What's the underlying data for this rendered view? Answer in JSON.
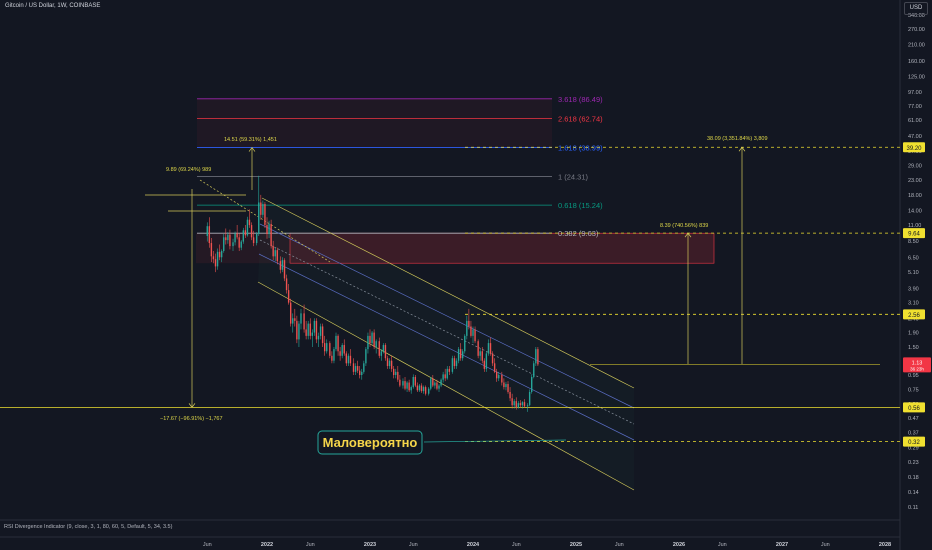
{
  "header": {
    "title": "Gitcoin / US Dollar, 1W, COINBASE",
    "currency": "USD"
  },
  "indicator": "RSI Divergence Indicator (9, close, 3, 1, 80, 60, 5, Default, 5, 34, 3.5)",
  "annotation": {
    "text": "Маловероятно"
  },
  "colors": {
    "bg": "#131722",
    "candle_up": "#26a69a",
    "candle_down": "#ef5350",
    "channel": "#d4c95a",
    "dashed_level": "#f0e030",
    "label_red": "#f23645"
  },
  "chart_data": {
    "type": "candlestick",
    "yscale": "log",
    "y_ticks": [
      340.0,
      270.0,
      210.0,
      160.0,
      125.0,
      97.0,
      77.0,
      61.0,
      47.0,
      37.0,
      29.0,
      23.0,
      18.0,
      14.0,
      11.0,
      8.5,
      6.5,
      5.1,
      3.9,
      3.1,
      2.4,
      1.9,
      1.5,
      1.2,
      0.95,
      0.75,
      0.59,
      0.47,
      0.37,
      0.29,
      0.23,
      0.18,
      0.14,
      0.11
    ],
    "x_ticks": [
      "Jun",
      "2022",
      "Jun",
      "2023",
      "Jun",
      "2024",
      "Jun",
      "2025",
      "Jun",
      "2026",
      "Jun",
      "2027",
      "Jun",
      "2028"
    ],
    "price_labels": [
      {
        "text": "39.20",
        "value": 39.2
      },
      {
        "text": "9.64",
        "value": 9.64
      },
      {
        "text": "2.56",
        "value": 2.56
      },
      {
        "text": "1.13",
        "value": 1.13
      },
      {
        "text": "0.56",
        "value": 0.56
      },
      {
        "text": "0.32",
        "value": 0.32
      }
    ],
    "current_price": {
      "text": "1.13",
      "sub": "36 23h"
    },
    "fib_levels": [
      {
        "label": "3.618 (86.49)",
        "value": 86.49,
        "color": "#9c27b0"
      },
      {
        "label": "2.618 (62.74)",
        "value": 62.74,
        "color": "#f23645"
      },
      {
        "label": "1.618 (38.99)",
        "value": 38.99,
        "color": "#2962ff"
      },
      {
        "label": "1 (24.31)",
        "value": 24.31,
        "color": "#787b86"
      },
      {
        "label": "0.618 (15.24)",
        "value": 15.24,
        "color": "#089981"
      },
      {
        "label": "0.382 (9.63)",
        "value": 9.63,
        "color": "#b2b5be"
      }
    ],
    "measure_labels": [
      {
        "text": "14.51 (59.31%) 1,451"
      },
      {
        "text": "9.89 (69.24%) 989"
      },
      {
        "text": "38.09 (3,351.84%) 3,809"
      },
      {
        "text": "8.39 (740.56%) 839"
      },
      {
        "text": "−17.67 (−96.91%) −1,767"
      }
    ],
    "candles": [
      [
        2021.42,
        9.2,
        11.5,
        8.4,
        10.8
      ],
      [
        2021.44,
        10.8,
        12.5,
        7.6,
        8.2
      ],
      [
        2021.46,
        8.2,
        8.9,
        6.0,
        6.6
      ],
      [
        2021.48,
        6.6,
        7.2,
        5.9,
        6.3
      ],
      [
        2021.5,
        6.3,
        6.9,
        5.1,
        5.6
      ],
      [
        2021.52,
        5.6,
        7.5,
        5.3,
        7.1
      ],
      [
        2021.54,
        7.1,
        8.0,
        6.2,
        6.5
      ],
      [
        2021.56,
        6.5,
        7.4,
        6.0,
        7.2
      ],
      [
        2021.58,
        7.2,
        9.5,
        7.0,
        9.0
      ],
      [
        2021.6,
        9.0,
        10.4,
        8.0,
        8.6
      ],
      [
        2021.62,
        8.6,
        9.8,
        8.1,
        9.4
      ],
      [
        2021.64,
        9.4,
        10.2,
        7.4,
        7.8
      ],
      [
        2021.67,
        7.8,
        8.8,
        7.2,
        8.3
      ],
      [
        2021.69,
        8.3,
        9.9,
        7.9,
        9.6
      ],
      [
        2021.71,
        9.6,
        11.0,
        8.7,
        9.0
      ],
      [
        2021.73,
        9.0,
        9.6,
        7.2,
        7.6
      ],
      [
        2021.75,
        7.6,
        8.6,
        7.3,
        8.4
      ],
      [
        2021.77,
        8.4,
        10.5,
        8.1,
        10.1
      ],
      [
        2021.79,
        10.1,
        11.0,
        8.9,
        9.3
      ],
      [
        2021.81,
        9.3,
        12.6,
        9.1,
        12.0
      ],
      [
        2021.83,
        12.0,
        14.2,
        10.5,
        11.0
      ],
      [
        2021.85,
        11.0,
        11.5,
        8.6,
        9.0
      ],
      [
        2021.87,
        9.0,
        10.0,
        7.8,
        8.2
      ],
      [
        2021.9,
        8.2,
        9.8,
        7.9,
        9.5
      ],
      [
        2021.92,
        9.5,
        24.6,
        9.2,
        15.9
      ],
      [
        2021.94,
        15.9,
        18.0,
        12.0,
        13.0
      ],
      [
        2021.96,
        13.0,
        16.4,
        12.4,
        15.5
      ],
      [
        2021.98,
        15.5,
        16.0,
        10.5,
        11.0
      ],
      [
        2022.0,
        11.0,
        12.5,
        8.8,
        9.5
      ],
      [
        2022.02,
        9.5,
        11.8,
        8.9,
        11.2
      ],
      [
        2022.04,
        11.2,
        12.0,
        7.5,
        7.8
      ],
      [
        2022.06,
        7.8,
        8.5,
        6.2,
        6.6
      ],
      [
        2022.08,
        6.6,
        7.6,
        6.1,
        7.3
      ],
      [
        2022.1,
        7.3,
        7.6,
        5.8,
        6.1
      ],
      [
        2022.13,
        6.1,
        6.6,
        5.0,
        5.3
      ],
      [
        2022.15,
        5.3,
        6.5,
        5.1,
        6.2
      ],
      [
        2022.17,
        6.2,
        6.4,
        4.4,
        4.6
      ],
      [
        2022.19,
        4.6,
        4.9,
        3.6,
        3.8
      ],
      [
        2022.21,
        3.8,
        4.2,
        3.0,
        3.1
      ],
      [
        2022.23,
        3.1,
        3.3,
        2.1,
        2.2
      ],
      [
        2022.25,
        2.2,
        2.6,
        1.9,
        2.4
      ],
      [
        2022.27,
        2.4,
        2.8,
        2.1,
        2.3
      ],
      [
        2022.29,
        2.3,
        2.5,
        1.6,
        1.7
      ],
      [
        2022.31,
        1.7,
        2.3,
        1.5,
        2.2
      ],
      [
        2022.33,
        2.2,
        2.8,
        2.0,
        2.6
      ],
      [
        2022.36,
        2.6,
        3.0,
        1.9,
        2.0
      ],
      [
        2022.38,
        2.0,
        2.3,
        1.7,
        1.8
      ],
      [
        2022.4,
        1.8,
        2.3,
        1.7,
        2.2
      ],
      [
        2022.42,
        2.2,
        2.4,
        1.7,
        1.8
      ],
      [
        2022.44,
        1.8,
        2.0,
        1.5,
        1.9
      ],
      [
        2022.46,
        1.9,
        2.4,
        1.8,
        2.3
      ],
      [
        2022.48,
        2.3,
        2.4,
        1.6,
        1.7
      ],
      [
        2022.5,
        1.7,
        1.9,
        1.5,
        1.8
      ],
      [
        2022.52,
        1.8,
        2.2,
        1.7,
        2.1
      ],
      [
        2022.54,
        2.1,
        2.2,
        1.5,
        1.6
      ],
      [
        2022.56,
        1.6,
        1.8,
        1.3,
        1.4
      ],
      [
        2022.58,
        1.4,
        1.7,
        1.35,
        1.6
      ],
      [
        2022.61,
        1.6,
        1.65,
        1.25,
        1.3
      ],
      [
        2022.63,
        1.3,
        1.4,
        1.15,
        1.2
      ],
      [
        2022.65,
        1.2,
        1.5,
        1.15,
        1.45
      ],
      [
        2022.67,
        1.45,
        1.9,
        1.4,
        1.8
      ],
      [
        2022.69,
        1.8,
        1.85,
        1.3,
        1.4
      ],
      [
        2022.71,
        1.4,
        1.5,
        1.2,
        1.3
      ],
      [
        2022.73,
        1.3,
        1.6,
        1.25,
        1.55
      ],
      [
        2022.75,
        1.55,
        1.7,
        1.3,
        1.35
      ],
      [
        2022.77,
        1.35,
        1.4,
        1.1,
        1.15
      ],
      [
        2022.79,
        1.15,
        1.35,
        1.1,
        1.3
      ],
      [
        2022.81,
        1.3,
        1.45,
        1.1,
        1.15
      ],
      [
        2022.84,
        1.15,
        1.25,
        0.95,
        1.0
      ],
      [
        2022.86,
        1.0,
        1.15,
        0.95,
        1.1
      ],
      [
        2022.88,
        1.1,
        1.2,
        0.98,
        1.02
      ],
      [
        2022.9,
        1.02,
        1.1,
        0.9,
        0.95
      ],
      [
        2022.92,
        0.95,
        1.05,
        0.88,
        1.0
      ],
      [
        2022.94,
        1.0,
        1.2,
        0.97,
        1.15
      ],
      [
        2022.96,
        1.15,
        1.5,
        1.1,
        1.45
      ],
      [
        2022.98,
        1.45,
        1.9,
        1.35,
        1.8
      ],
      [
        2023.0,
        1.8,
        2.0,
        1.5,
        1.6
      ],
      [
        2023.02,
        1.6,
        1.95,
        1.55,
        1.9
      ],
      [
        2023.04,
        1.9,
        2.0,
        1.45,
        1.5
      ],
      [
        2023.06,
        1.5,
        1.7,
        1.35,
        1.65
      ],
      [
        2023.09,
        1.65,
        1.75,
        1.25,
        1.3
      ],
      [
        2023.11,
        1.3,
        1.45,
        1.2,
        1.4
      ],
      [
        2023.13,
        1.4,
        1.6,
        1.35,
        1.55
      ],
      [
        2023.15,
        1.55,
        1.6,
        1.2,
        1.25
      ],
      [
        2023.17,
        1.25,
        1.3,
        1.05,
        1.1
      ],
      [
        2023.19,
        1.1,
        1.25,
        1.05,
        1.2
      ],
      [
        2023.21,
        1.2,
        1.3,
        1.0,
        1.05
      ],
      [
        2023.23,
        1.05,
        1.1,
        0.9,
        0.95
      ],
      [
        2023.25,
        0.95,
        1.05,
        0.9,
        1.0
      ],
      [
        2023.27,
        1.0,
        1.1,
        0.85,
        0.88
      ],
      [
        2023.29,
        0.88,
        0.95,
        0.78,
        0.8
      ],
      [
        2023.32,
        0.8,
        0.9,
        0.76,
        0.86
      ],
      [
        2023.34,
        0.86,
        0.92,
        0.74,
        0.76
      ],
      [
        2023.36,
        0.76,
        0.86,
        0.72,
        0.84
      ],
      [
        2023.38,
        0.84,
        0.88,
        0.72,
        0.74
      ],
      [
        2023.4,
        0.74,
        0.8,
        0.7,
        0.78
      ],
      [
        2023.42,
        0.78,
        0.96,
        0.76,
        0.92
      ],
      [
        2023.44,
        0.92,
        0.95,
        0.78,
        0.8
      ],
      [
        2023.46,
        0.8,
        0.84,
        0.72,
        0.74
      ],
      [
        2023.48,
        0.74,
        0.82,
        0.72,
        0.8
      ],
      [
        2023.5,
        0.8,
        0.83,
        0.71,
        0.73
      ],
      [
        2023.52,
        0.73,
        0.8,
        0.7,
        0.78
      ],
      [
        2023.54,
        0.78,
        0.8,
        0.68,
        0.7
      ],
      [
        2023.57,
        0.7,
        0.78,
        0.68,
        0.76
      ],
      [
        2023.59,
        0.76,
        0.92,
        0.74,
        0.9
      ],
      [
        2023.61,
        0.9,
        0.95,
        0.78,
        0.8
      ],
      [
        2023.63,
        0.8,
        0.86,
        0.76,
        0.84
      ],
      [
        2023.65,
        0.84,
        0.88,
        0.74,
        0.76
      ],
      [
        2023.67,
        0.76,
        0.82,
        0.72,
        0.8
      ],
      [
        2023.69,
        0.8,
        0.9,
        0.78,
        0.88
      ],
      [
        2023.71,
        0.88,
        1.0,
        0.84,
        0.96
      ],
      [
        2023.73,
        0.96,
        1.05,
        0.86,
        0.9
      ],
      [
        2023.75,
        0.9,
        1.1,
        0.88,
        1.05
      ],
      [
        2023.77,
        1.05,
        1.1,
        0.95,
        1.0
      ],
      [
        2023.8,
        1.0,
        1.3,
        0.97,
        1.25
      ],
      [
        2023.82,
        1.25,
        1.3,
        1.05,
        1.1
      ],
      [
        2023.84,
        1.1,
        1.25,
        1.05,
        1.2
      ],
      [
        2023.86,
        1.2,
        1.5,
        1.15,
        1.45
      ],
      [
        2023.88,
        1.45,
        1.6,
        1.2,
        1.25
      ],
      [
        2023.9,
        1.25,
        1.45,
        1.2,
        1.4
      ],
      [
        2023.92,
        1.4,
        1.85,
        1.35,
        1.8
      ],
      [
        2023.94,
        1.8,
        2.5,
        1.7,
        2.3
      ],
      [
        2023.96,
        2.3,
        2.8,
        2.0,
        2.1
      ],
      [
        2023.98,
        2.1,
        2.3,
        1.75,
        1.8
      ],
      [
        2024.0,
        1.8,
        2.1,
        1.6,
        2.0
      ],
      [
        2024.02,
        2.0,
        2.1,
        1.6,
        1.65
      ],
      [
        2024.05,
        1.65,
        1.7,
        1.25,
        1.3
      ],
      [
        2024.07,
        1.3,
        1.45,
        1.2,
        1.4
      ],
      [
        2024.09,
        1.4,
        1.5,
        1.15,
        1.2
      ],
      [
        2024.11,
        1.2,
        1.25,
        1.0,
        1.05
      ],
      [
        2024.13,
        1.05,
        1.4,
        1.0,
        1.35
      ],
      [
        2024.15,
        1.35,
        1.7,
        1.3,
        1.6
      ],
      [
        2024.17,
        1.6,
        1.75,
        1.3,
        1.35
      ],
      [
        2024.19,
        1.35,
        1.4,
        1.1,
        1.15
      ],
      [
        2024.21,
        1.15,
        1.25,
        0.98,
        1.0
      ],
      [
        2024.23,
        1.0,
        1.05,
        0.85,
        0.9
      ],
      [
        2024.25,
        0.9,
        1.0,
        0.86,
        0.95
      ],
      [
        2024.28,
        0.95,
        1.0,
        0.8,
        0.84
      ],
      [
        2024.3,
        0.84,
        0.9,
        0.75,
        0.78
      ],
      [
        2024.32,
        0.78,
        0.85,
        0.74,
        0.82
      ],
      [
        2024.34,
        0.82,
        0.86,
        0.7,
        0.72
      ],
      [
        2024.36,
        0.72,
        0.78,
        0.62,
        0.65
      ],
      [
        2024.38,
        0.65,
        0.7,
        0.55,
        0.58
      ],
      [
        2024.4,
        0.58,
        0.64,
        0.55,
        0.62
      ],
      [
        2024.42,
        0.62,
        0.66,
        0.54,
        0.56
      ],
      [
        2024.44,
        0.56,
        0.62,
        0.55,
        0.6
      ],
      [
        2024.46,
        0.6,
        0.63,
        0.56,
        0.58
      ],
      [
        2024.48,
        0.58,
        0.62,
        0.55,
        0.61
      ],
      [
        2024.5,
        0.61,
        0.64,
        0.56,
        0.57
      ],
      [
        2024.53,
        0.57,
        0.6,
        0.52,
        0.58
      ],
      [
        2024.55,
        0.58,
        0.75,
        0.57,
        0.72
      ],
      [
        2024.57,
        0.72,
        0.96,
        0.7,
        0.92
      ],
      [
        2024.59,
        0.92,
        1.2,
        0.9,
        1.15
      ],
      [
        2024.61,
        1.15,
        1.5,
        1.1,
        1.45
      ],
      [
        2024.63,
        1.45,
        1.5,
        1.1,
        1.13
      ]
    ]
  }
}
